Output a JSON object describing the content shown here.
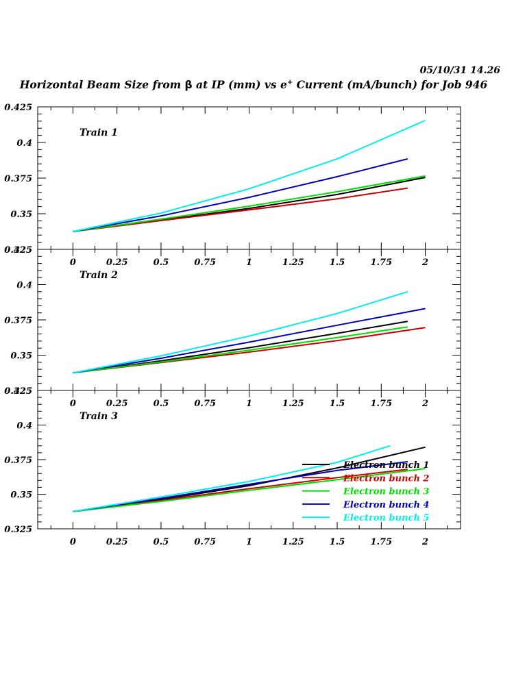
{
  "header": {
    "datestamp": "05/10/31   14.26",
    "title_part1": "Horizontal Beam Size from ",
    "title_beta": "β",
    "title_part2": " at IP (mm) vs e",
    "title_sup": "+",
    "title_part3": " Current (mA/bunch) for Job 946"
  },
  "chart_data": {
    "type": "line",
    "xlim": [
      -0.2,
      2.2
    ],
    "ylim": [
      0.325,
      0.425
    ],
    "x_ticks": [
      0,
      0.25,
      0.5,
      0.75,
      1,
      1.25,
      1.5,
      1.75,
      2
    ],
    "x_tick_labels": [
      "0",
      "0.25",
      "0.5",
      "0.75",
      "1",
      "1.25",
      "1.5",
      "1.75",
      "2"
    ],
    "y_ticks": [
      0.325,
      0.35,
      0.375,
      0.4,
      0.425
    ],
    "y_tick_labels": [
      "0.325",
      "0.35",
      "0.375",
      "0.4",
      "0.425"
    ],
    "grid": false,
    "legend_position": "lower-right of Train 3",
    "legend": [
      {
        "label": "Electron bunch 1",
        "color": "#000000"
      },
      {
        "label": "Electron bunch 2",
        "color": "#cc0000"
      },
      {
        "label": "Electron bunch 3",
        "color": "#00dd00"
      },
      {
        "label": "Electron bunch 4",
        "color": "#0000bb"
      },
      {
        "label": "Electron bunch 5",
        "color": "#00eeee"
      }
    ],
    "panels": [
      {
        "label": "Train 1",
        "series": [
          {
            "color": "#000000",
            "x": [
              0,
              0.5,
              1,
              1.5,
              2
            ],
            "y": [
              0.3375,
              0.3455,
              0.3537,
              0.3635,
              0.3755
            ]
          },
          {
            "color": "#cc0000",
            "x": [
              0,
              0.5,
              1,
              1.5,
              1.9
            ],
            "y": [
              0.3375,
              0.3452,
              0.3527,
              0.3605,
              0.368
            ]
          },
          {
            "color": "#00dd00",
            "x": [
              0,
              0.5,
              1,
              1.5,
              2
            ],
            "y": [
              0.3375,
              0.3462,
              0.3553,
              0.3655,
              0.3765
            ]
          },
          {
            "color": "#0000bb",
            "x": [
              0,
              0.5,
              1,
              1.5,
              1.9
            ],
            "y": [
              0.3375,
              0.3485,
              0.3615,
              0.376,
              0.3885
            ]
          },
          {
            "color": "#00eeee",
            "x": [
              0,
              0.5,
              1,
              1.5,
              2
            ],
            "y": [
              0.3375,
              0.3505,
              0.3675,
              0.3885,
              0.4155
            ]
          }
        ]
      },
      {
        "label": "Train 2",
        "series": [
          {
            "color": "#000000",
            "x": [
              0,
              0.5,
              1,
              1.5,
              1.9
            ],
            "y": [
              0.3375,
              0.346,
              0.3553,
              0.3655,
              0.374
            ]
          },
          {
            "color": "#cc0000",
            "x": [
              0,
              0.5,
              1,
              1.5,
              2
            ],
            "y": [
              0.3375,
              0.3448,
              0.3522,
              0.3603,
              0.3695
            ]
          },
          {
            "color": "#00dd00",
            "x": [
              0,
              0.5,
              1,
              1.5,
              1.9
            ],
            "y": [
              0.3375,
              0.3452,
              0.3535,
              0.3625,
              0.37
            ]
          },
          {
            "color": "#0000bb",
            "x": [
              0,
              0.5,
              1,
              1.5,
              2
            ],
            "y": [
              0.3375,
              0.3478,
              0.3592,
              0.3712,
              0.383
            ]
          },
          {
            "color": "#00eeee",
            "x": [
              0,
              0.5,
              1,
              1.5,
              1.9
            ],
            "y": [
              0.3375,
              0.3495,
              0.3635,
              0.3795,
              0.395
            ]
          }
        ]
      },
      {
        "label": "Train 3",
        "series": [
          {
            "color": "#000000",
            "x": [
              0,
              0.5,
              1,
              1.5,
              2
            ],
            "y": [
              0.3375,
              0.3462,
              0.3562,
              0.369,
              0.384
            ]
          },
          {
            "color": "#cc0000",
            "x": [
              0,
              0.5,
              1,
              1.5,
              1.9
            ],
            "y": [
              0.3375,
              0.3455,
              0.354,
              0.362,
              0.368
            ]
          },
          {
            "color": "#00dd00",
            "x": [
              0,
              0.5,
              1,
              1.5,
              2
            ],
            "y": [
              0.3375,
              0.3448,
              0.3528,
              0.3605,
              0.3685
            ]
          },
          {
            "color": "#0000bb",
            "x": [
              0,
              0.5,
              1,
              1.5,
              1.9
            ],
            "y": [
              0.3375,
              0.347,
              0.3572,
              0.3672,
              0.3735
            ]
          },
          {
            "color": "#00eeee",
            "x": [
              0,
              0.5,
              1,
              1.5,
              1.8
            ],
            "y": [
              0.3375,
              0.348,
              0.3592,
              0.373,
              0.385
            ]
          }
        ]
      }
    ]
  }
}
